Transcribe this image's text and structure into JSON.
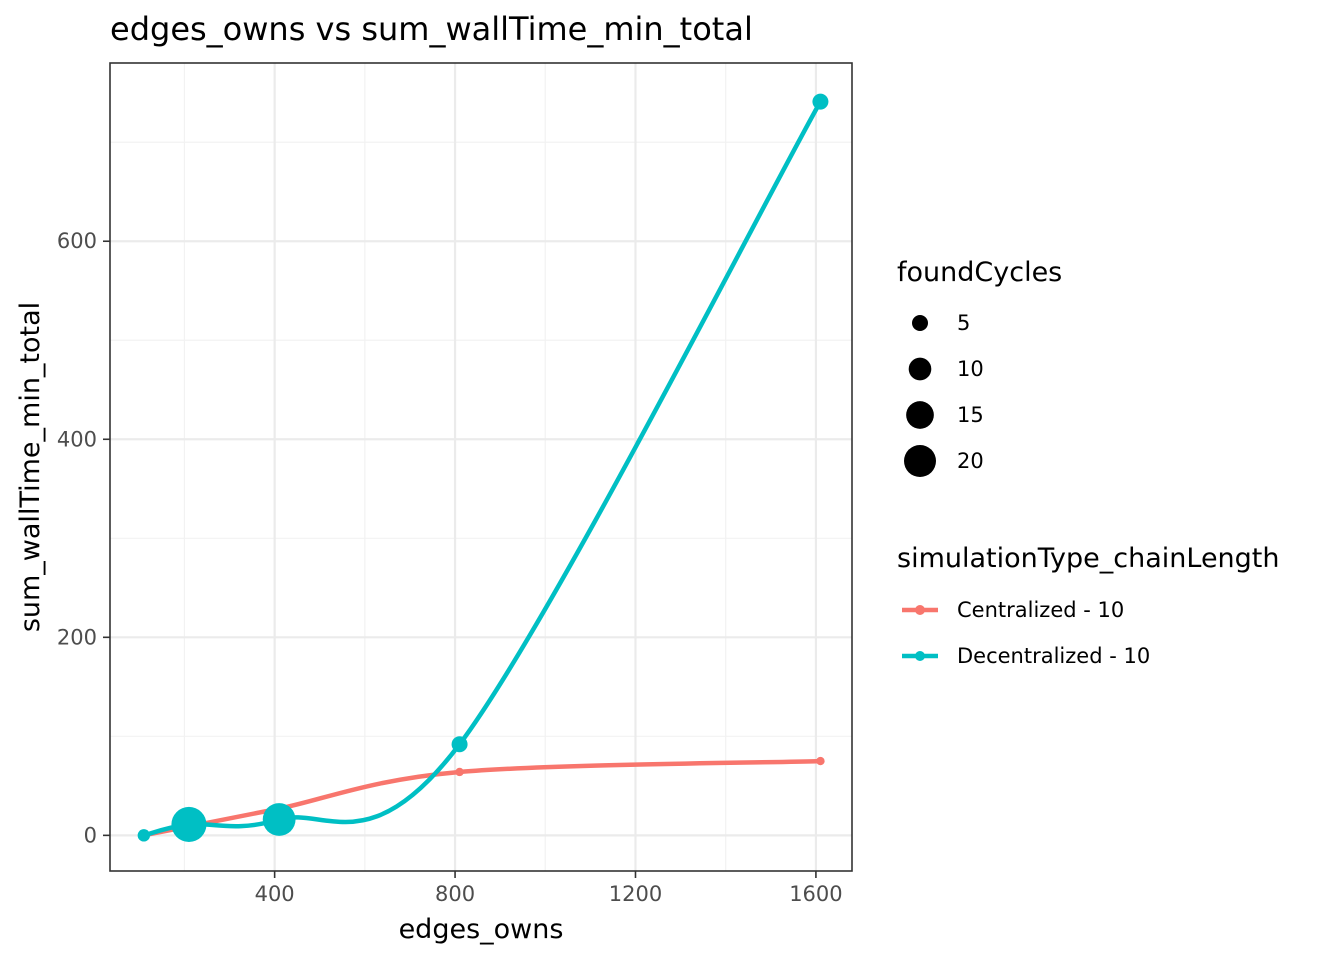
{
  "chart_data": {
    "type": "scatter",
    "title": "edges_owns  vs  sum_wallTime_min_total",
    "xlabel": "edges_owns",
    "ylabel": "sum_wallTime_min_total",
    "xlim": [
      35,
      1680
    ],
    "ylim": [
      -36,
      780
    ],
    "x_ticks": [
      400,
      800,
      1200,
      1600
    ],
    "y_ticks": [
      0,
      200,
      400,
      600
    ],
    "grid": true,
    "size_legend": {
      "title": "foundCycles",
      "entries": [
        {
          "label": "5",
          "value": 5
        },
        {
          "label": "10",
          "value": 10
        },
        {
          "label": "15",
          "value": 15
        },
        {
          "label": "20",
          "value": 20
        }
      ]
    },
    "color_legend": {
      "title": "simulationType_chainLength",
      "placement": "right"
    },
    "series": [
      {
        "name": "Centralized - 10",
        "color": "#F8766D",
        "points": [
          {
            "x": 110,
            "y": 0,
            "size": 1
          },
          {
            "x": 210,
            "y": 9,
            "size": 1
          },
          {
            "x": 410,
            "y": 27,
            "size": 1
          },
          {
            "x": 810,
            "y": 64,
            "size": 1
          },
          {
            "x": 1610,
            "y": 75,
            "size": 1
          }
        ]
      },
      {
        "name": "Decentralized - 10",
        "color": "#00BFC4",
        "points": [
          {
            "x": 110,
            "y": 0,
            "size": 3
          },
          {
            "x": 210,
            "y": 11,
            "size": 24
          },
          {
            "x": 410,
            "y": 16,
            "size": 21
          },
          {
            "x": 810,
            "y": 92,
            "size": 5
          },
          {
            "x": 1610,
            "y": 741,
            "size": 5
          }
        ]
      }
    ]
  }
}
